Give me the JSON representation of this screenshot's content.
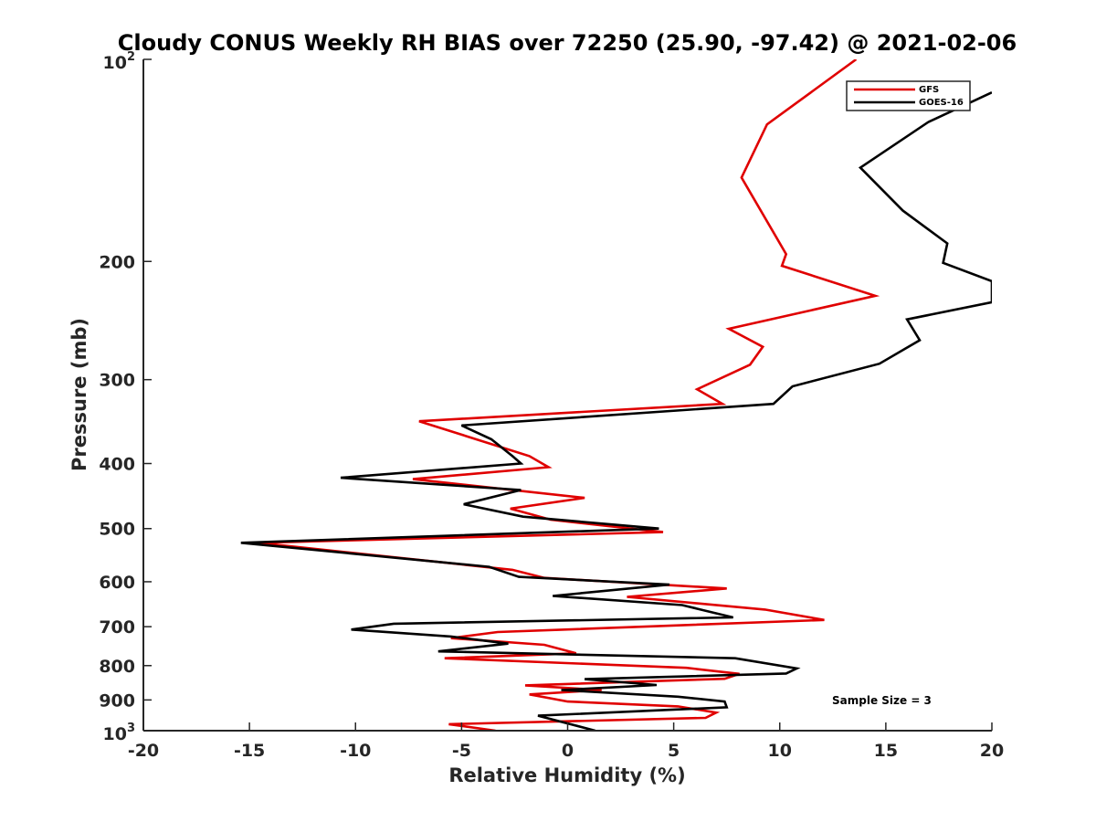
{
  "chart_data": {
    "type": "line",
    "title": "Cloudy CONUS Weekly RH BIAS over 72250 (25.90, -97.42) @ 2021-02-06",
    "xlabel": "Relative Humidity (%)",
    "ylabel": "Pressure (mb)",
    "xlim": [
      -20,
      20
    ],
    "ylim": [
      1000,
      100
    ],
    "y_scale": "log",
    "y_reversed": true,
    "grid": false,
    "legend_position": "top-right",
    "x_ticks": [
      {
        "value": -20,
        "label": "-20"
      },
      {
        "value": -15,
        "label": "-15"
      },
      {
        "value": -10,
        "label": "-10"
      },
      {
        "value": -5,
        "label": "-5"
      },
      {
        "value": 0,
        "label": "0"
      },
      {
        "value": 5,
        "label": "5"
      },
      {
        "value": 10,
        "label": "10"
      },
      {
        "value": 15,
        "label": "15"
      },
      {
        "value": 20,
        "label": "20"
      }
    ],
    "y_ticks": [
      {
        "value": 100,
        "base": "10",
        "exp": "2"
      },
      {
        "value": 200,
        "label": "200"
      },
      {
        "value": 300,
        "label": "300"
      },
      {
        "value": 400,
        "label": "400"
      },
      {
        "value": 500,
        "label": "500"
      },
      {
        "value": 600,
        "label": "600"
      },
      {
        "value": 700,
        "label": "700"
      },
      {
        "value": 800,
        "label": "800"
      },
      {
        "value": 900,
        "label": "900"
      },
      {
        "value": 1000,
        "base": "10",
        "exp": "3"
      }
    ],
    "annotation": "Sample Size = 3",
    "series": [
      {
        "name": "GFS",
        "color": "#e00000",
        "points": [
          [
            13.6,
            100
          ],
          [
            9.4,
            125
          ],
          [
            8.2,
            150
          ],
          [
            10.3,
            195
          ],
          [
            10.1,
            203
          ],
          [
            14.5,
            225
          ],
          [
            7.6,
            252
          ],
          [
            9.2,
            268
          ],
          [
            8.6,
            285
          ],
          [
            6.1,
            310
          ],
          [
            7.3,
            326
          ],
          [
            -7.0,
            346
          ],
          [
            -1.8,
            390
          ],
          [
            -0.9,
            405
          ],
          [
            -7.3,
            422
          ],
          [
            0.8,
            450
          ],
          [
            -2.7,
            467
          ],
          [
            -0.8,
            485
          ],
          [
            4.5,
            506
          ],
          [
            -14.6,
            525
          ],
          [
            -2.6,
            576
          ],
          [
            -1.1,
            592
          ],
          [
            7.5,
            614
          ],
          [
            2.8,
            632
          ],
          [
            9.3,
            660
          ],
          [
            12.1,
            684
          ],
          [
            -3.3,
            713
          ],
          [
            -5.5,
            728
          ],
          [
            -1.1,
            745
          ],
          [
            0.4,
            767
          ],
          [
            -5.8,
            780
          ],
          [
            5.6,
            806
          ],
          [
            8.1,
            823
          ],
          [
            7.4,
            837
          ],
          [
            -2.0,
            856
          ],
          [
            1.6,
            870
          ],
          [
            -1.8,
            883
          ],
          [
            0.0,
            905
          ],
          [
            5.2,
            920
          ],
          [
            7.0,
            940
          ],
          [
            6.5,
            957
          ],
          [
            -5.6,
            978
          ],
          [
            -3.4,
            1000
          ]
        ]
      },
      {
        "name": "GOES-16",
        "color": "#000000",
        "points": [
          [
            20.0,
            112
          ],
          [
            17.0,
            124
          ],
          [
            13.8,
            145
          ],
          [
            15.8,
            168
          ],
          [
            17.9,
            188
          ],
          [
            17.7,
            201
          ],
          [
            20.0,
            214
          ],
          [
            20.0,
            230
          ],
          [
            16.0,
            244
          ],
          [
            16.6,
            262
          ],
          [
            14.7,
            284
          ],
          [
            10.6,
            307
          ],
          [
            9.7,
            326
          ],
          [
            -5.0,
            351
          ],
          [
            -3.6,
            368
          ],
          [
            -2.6,
            390
          ],
          [
            -2.2,
            400
          ],
          [
            -10.7,
            420
          ],
          [
            -2.2,
            438
          ],
          [
            -4.9,
            460
          ],
          [
            -2.1,
            480
          ],
          [
            4.3,
            500
          ],
          [
            -15.4,
            525
          ],
          [
            -3.7,
            570
          ],
          [
            -2.3,
            590
          ],
          [
            4.8,
            606
          ],
          [
            -0.7,
            630
          ],
          [
            5.4,
            650
          ],
          [
            7.8,
            678
          ],
          [
            -8.2,
            693
          ],
          [
            -10.2,
            707
          ],
          [
            -5.5,
            724
          ],
          [
            -2.8,
            742
          ],
          [
            -6.1,
            762
          ],
          [
            7.9,
            780
          ],
          [
            10.8,
            808
          ],
          [
            10.3,
            822
          ],
          [
            0.8,
            838
          ],
          [
            4.2,
            855
          ],
          [
            -0.3,
            870
          ],
          [
            5.2,
            890
          ],
          [
            7.4,
            905
          ],
          [
            7.5,
            923
          ],
          [
            -1.4,
            950
          ],
          [
            1.3,
            1000
          ]
        ]
      }
    ]
  }
}
